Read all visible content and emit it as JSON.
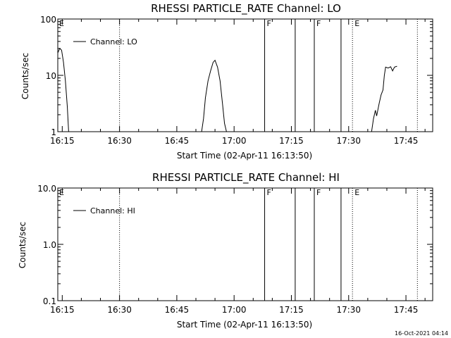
{
  "footer_stamp": "16-Oct-2021 04:14",
  "colors": {
    "foreground": "#000000",
    "background": "#ffffff"
  },
  "chart_data": [
    {
      "type": "line",
      "title": "RHESSI PARTICLE_RATE Channel: LO",
      "xlabel": "Start Time (02-Apr-11 16:13:50)",
      "ylabel": "Counts/sec",
      "yscale": "log",
      "xlim": [
        "16:13:50",
        "17:52:00"
      ],
      "ylim": [
        1,
        100
      ],
      "xticks": [
        "16:15",
        "16:30",
        "16:45",
        "17:00",
        "17:15",
        "17:30",
        "17:45"
      ],
      "yticks": [
        "1",
        "10",
        "100"
      ],
      "legend": {
        "position": "top-left",
        "entries": [
          "Channel: LO"
        ]
      },
      "event_lines": [
        {
          "time": "16:30",
          "style": "dotted",
          "label": ""
        },
        {
          "time": "17:08",
          "style": "solid",
          "label": "F"
        },
        {
          "time": "17:16",
          "style": "solid",
          "label": ""
        },
        {
          "time": "17:21",
          "style": "solid",
          "label": "F"
        },
        {
          "time": "17:28",
          "style": "solid",
          "label": ""
        },
        {
          "time": "17:31",
          "style": "dotted",
          "label": "E"
        },
        {
          "time": "17:48",
          "style": "dotted",
          "label": ""
        }
      ],
      "start_marker": "E",
      "series": [
        {
          "name": "Channel: LO",
          "segments": [
            [
              [
                "16:13:50",
                25
              ],
              [
                "16:14:20",
                30
              ],
              [
                "16:14:50",
                28
              ],
              [
                "16:15:20",
                17
              ],
              [
                "16:15:50",
                8
              ],
              [
                "16:16:20",
                2.8
              ],
              [
                "16:16:40",
                1
              ]
            ],
            [
              [
                "16:51:30",
                1
              ],
              [
                "16:52:00",
                1.7
              ],
              [
                "16:52:30",
                4
              ],
              [
                "16:53:10",
                8
              ],
              [
                "16:53:50",
                12
              ],
              [
                "16:54:30",
                17
              ],
              [
                "16:55:00",
                18.5
              ],
              [
                "16:55:40",
                14
              ],
              [
                "16:56:20",
                8
              ],
              [
                "16:57:00",
                3
              ],
              [
                "16:57:30",
                1.4
              ],
              [
                "16:58:00",
                1
              ]
            ],
            [
              [
                "17:36:00",
                1
              ],
              [
                "17:36:30",
                1.7
              ],
              [
                "17:37:00",
                2.4
              ],
              [
                "17:37:20",
                1.9
              ],
              [
                "17:38:00",
                3.2
              ],
              [
                "17:38:30",
                4.5
              ],
              [
                "17:39:00",
                5.5
              ],
              [
                "17:39:20",
                10
              ],
              [
                "17:39:40",
                14
              ],
              [
                "17:40:20",
                13.5
              ],
              [
                "17:41:00",
                14.2
              ],
              [
                "17:41:30",
                12
              ],
              [
                "17:42:00",
                14
              ],
              [
                "17:42:40",
                14.5
              ]
            ]
          ]
        }
      ]
    },
    {
      "type": "line",
      "title": "RHESSI PARTICLE_RATE Channel: HI",
      "xlabel": "Start Time (02-Apr-11 16:13:50)",
      "ylabel": "Counts/sec",
      "yscale": "log",
      "xlim": [
        "16:13:50",
        "17:52:00"
      ],
      "ylim": [
        0.1,
        10
      ],
      "xticks": [
        "16:15",
        "16:30",
        "16:45",
        "17:00",
        "17:15",
        "17:30",
        "17:45"
      ],
      "yticks": [
        "0.1",
        "1.0",
        "10.0"
      ],
      "legend": {
        "position": "top-left",
        "entries": [
          "Channel: HI"
        ]
      },
      "event_lines": [
        {
          "time": "16:30",
          "style": "dotted",
          "label": ""
        },
        {
          "time": "17:08",
          "style": "solid",
          "label": "F"
        },
        {
          "time": "17:16",
          "style": "solid",
          "label": ""
        },
        {
          "time": "17:21",
          "style": "solid",
          "label": "F"
        },
        {
          "time": "17:28",
          "style": "solid",
          "label": ""
        },
        {
          "time": "17:31",
          "style": "dotted",
          "label": "E"
        },
        {
          "time": "17:48",
          "style": "dotted",
          "label": ""
        }
      ],
      "start_marker": "E",
      "series": [
        {
          "name": "Channel: HI",
          "segments": []
        }
      ]
    }
  ]
}
